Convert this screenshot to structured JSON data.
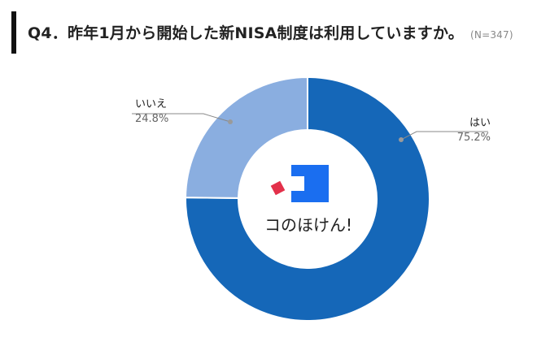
{
  "header": {
    "title": "Q4．昨年1月から開始した新NISA制度は利用していますか。",
    "sample_size": "(N=347)"
  },
  "brand": {
    "name": "コのほけん!",
    "colors": {
      "blue": "#1a6ef0",
      "red": "#e3304a"
    }
  },
  "chart_data": {
    "type": "pie",
    "donut": true,
    "title": "Q4．昨年1月から開始した新NISA制度は利用していますか。",
    "categories": [
      "はい",
      "いいえ"
    ],
    "values": [
      75.2,
      24.8
    ],
    "value_labels": [
      "75.2%",
      "24.8%"
    ],
    "unit": "%",
    "colors": [
      "#1567b8",
      "#8aaee0"
    ],
    "start": "12 o'clock",
    "direction": "clockwise"
  }
}
